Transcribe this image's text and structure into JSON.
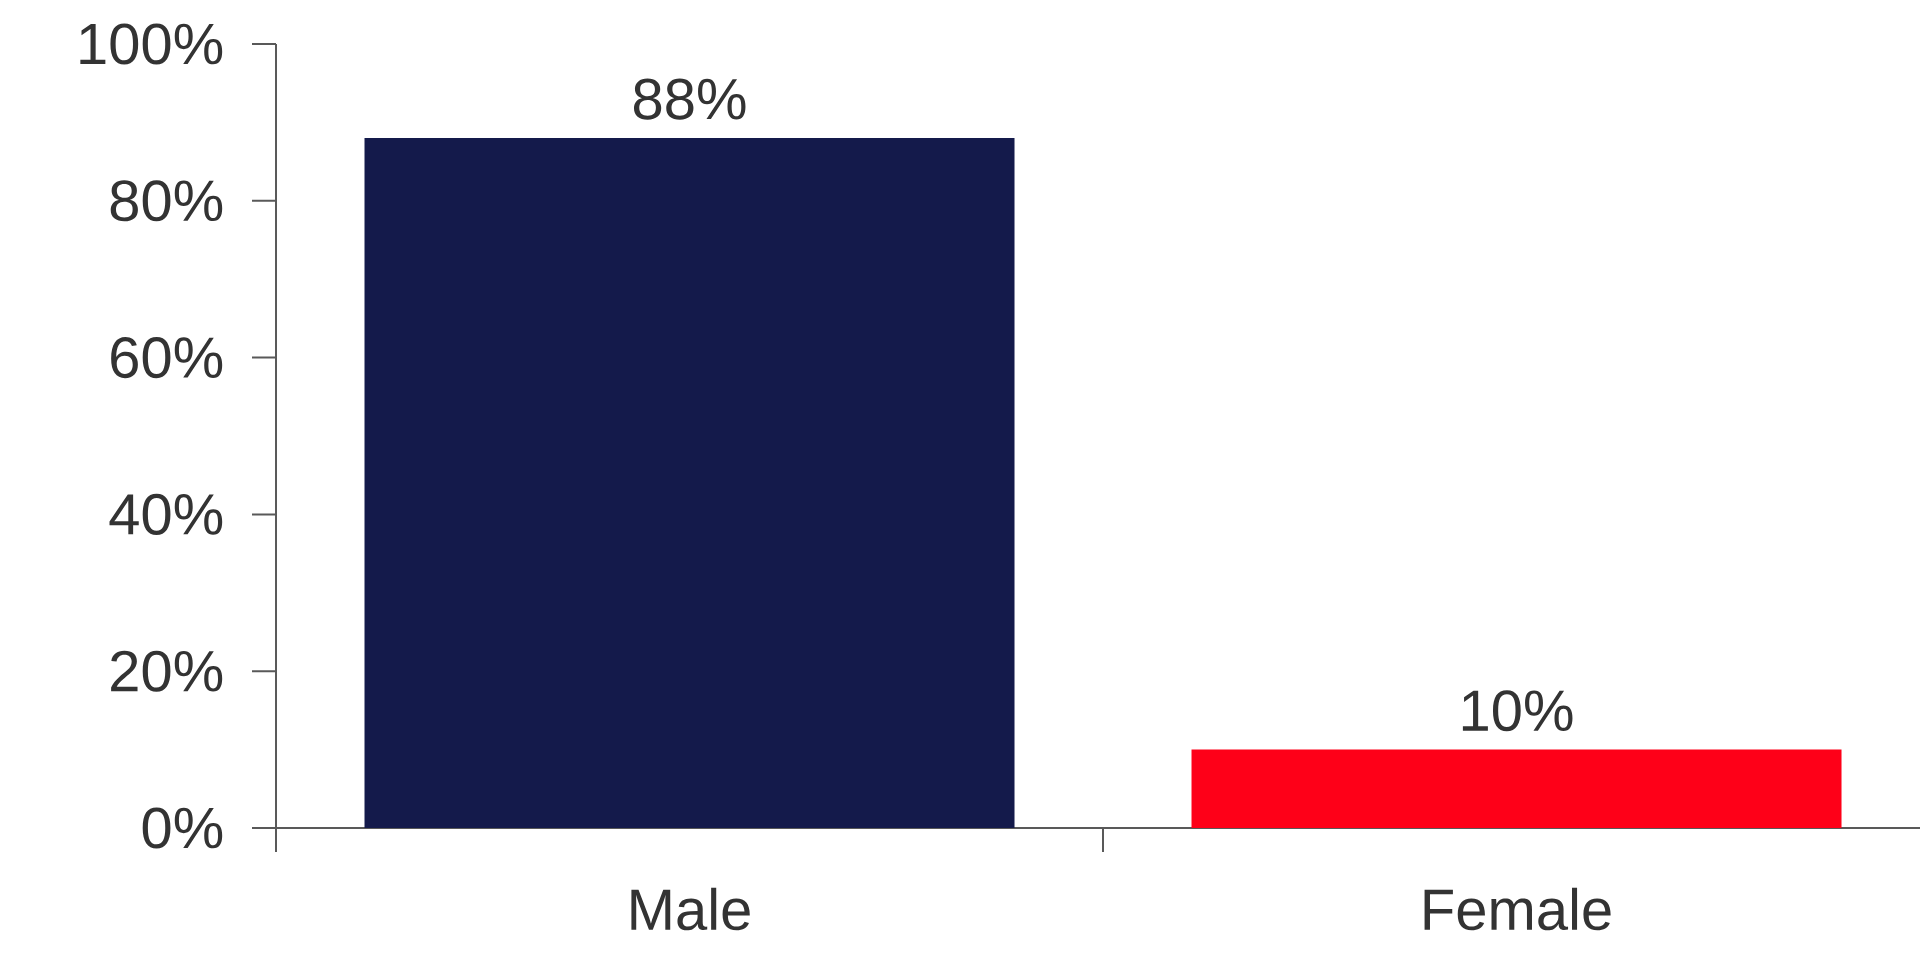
{
  "chart_data": {
    "type": "bar",
    "categories": [
      "Male",
      "Female"
    ],
    "values": [
      88,
      10
    ],
    "colors": [
      "#141a4b",
      "#fe0018"
    ],
    "value_labels": [
      "88%",
      "10%"
    ],
    "ylim": [
      0,
      100
    ],
    "yticks": [
      {
        "value": 0,
        "label": "0%"
      },
      {
        "value": 20,
        "label": "20%"
      },
      {
        "value": 40,
        "label": "40%"
      },
      {
        "value": 60,
        "label": "60%"
      },
      {
        "value": 80,
        "label": "80%"
      },
      {
        "value": 100,
        "label": "100%"
      }
    ],
    "grid": false
  }
}
